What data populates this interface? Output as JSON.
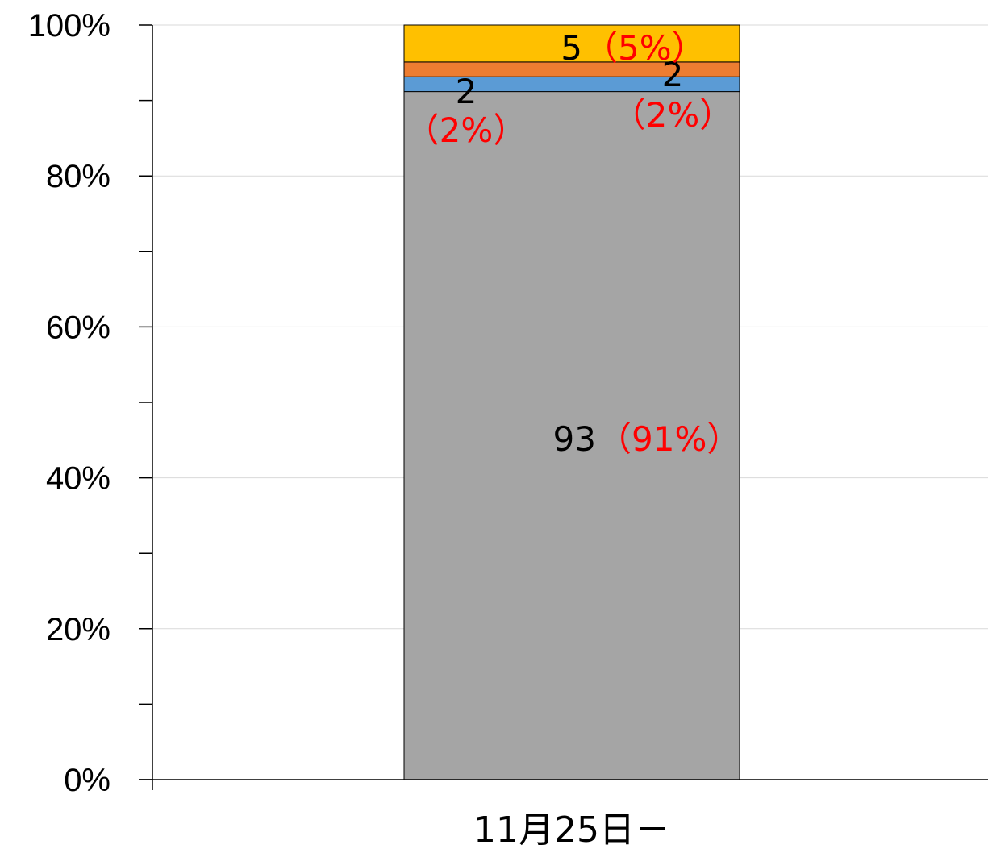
{
  "chart_data": {
    "type": "bar",
    "stacked": true,
    "percent_stacked": true,
    "categories": [
      "11月25日－"
    ],
    "ylim": [
      0,
      100
    ],
    "ytick_labels": [
      "0%",
      "20%",
      "40%",
      "60%",
      "80%",
      "100%"
    ],
    "grid": true,
    "series": [
      {
        "color": "#a5a5a5",
        "values": [
          93
        ],
        "count_label": "93",
        "pct_label": "（91%）"
      },
      {
        "color": "#5b9bd5",
        "values": [
          2
        ],
        "count_label": "2",
        "pct_label": "（2%）"
      },
      {
        "color": "#ed7d31",
        "values": [
          2
        ],
        "count_label": "2",
        "pct_label": "（2%）"
      },
      {
        "color": "#ffc000",
        "values": [
          5
        ],
        "count_label": "5",
        "pct_label": "（5%）"
      }
    ]
  }
}
